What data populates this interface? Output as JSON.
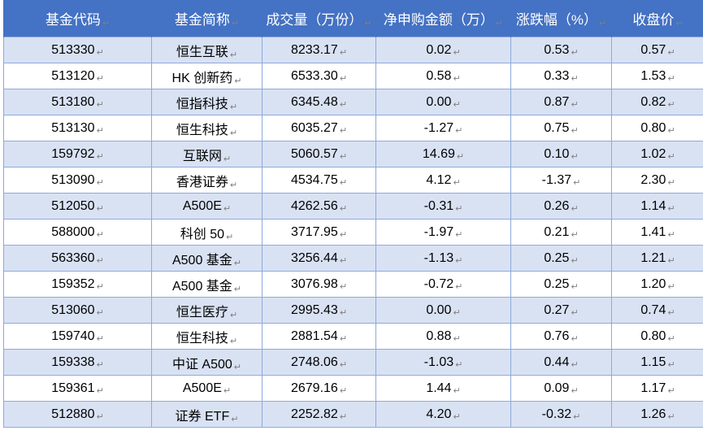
{
  "table": {
    "headers": [
      "基金代码",
      "基金简称",
      "成交量（万份）",
      "净申购金额（万）",
      "涨跌幅（%）",
      "收盘价"
    ],
    "paragraph_mark": "↵",
    "rows": [
      [
        "513330",
        "恒生互联",
        "8233.17",
        "0.02",
        "0.53",
        "0.57"
      ],
      [
        "513120",
        "HK 创新药",
        "6533.30",
        "0.58",
        "0.33",
        "1.53"
      ],
      [
        "513180",
        "恒指科技",
        "6345.48",
        "0.00",
        "0.87",
        "0.82"
      ],
      [
        "513130",
        "恒生科技",
        "6035.27",
        "-1.27",
        "0.75",
        "0.80"
      ],
      [
        "159792",
        "互联网",
        "5060.57",
        "14.69",
        "0.10",
        "1.02"
      ],
      [
        "513090",
        "香港证券",
        "4534.75",
        "4.12",
        "-1.37",
        "2.30"
      ],
      [
        "512050",
        "A500E",
        "4262.56",
        "-0.31",
        "0.26",
        "1.14"
      ],
      [
        "588000",
        "科创 50",
        "3717.95",
        "-1.97",
        "0.21",
        "1.41"
      ],
      [
        "563360",
        "A500 基金",
        "3256.44",
        "-1.13",
        "0.25",
        "1.21"
      ],
      [
        "159352",
        "A500 基金",
        "3076.98",
        "-0.72",
        "0.25",
        "1.20"
      ],
      [
        "513060",
        "恒生医疗",
        "2995.43",
        "0.00",
        "0.27",
        "0.74"
      ],
      [
        "159740",
        "恒生科技",
        "2881.54",
        "0.88",
        "0.76",
        "0.80"
      ],
      [
        "159338",
        "中证 A500",
        "2748.06",
        "-1.03",
        "0.44",
        "1.15"
      ],
      [
        "159361",
        "A500E",
        "2679.16",
        "1.44",
        "0.09",
        "1.17"
      ],
      [
        "512880",
        "证券 ETF",
        "2252.82",
        "4.20",
        "-0.32",
        "1.26"
      ]
    ]
  },
  "colors": {
    "header_bg": "#4472c4",
    "header_text": "#ffffff",
    "band_bg": "#d9e2f3",
    "border": "#8eaadb"
  }
}
